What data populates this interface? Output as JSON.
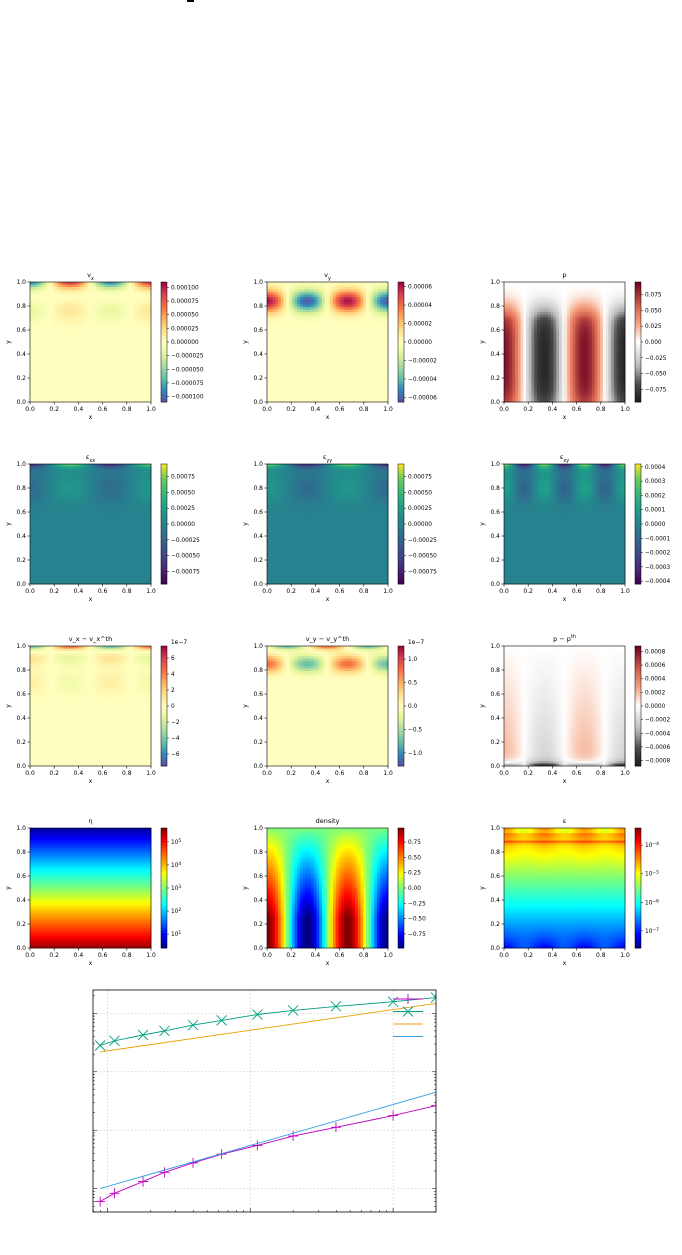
{
  "chart_data": [
    {
      "type": "heatmap",
      "title": "v_x",
      "field": "vx",
      "cmap": "spectral",
      "xlabel": "x",
      "ylabel": "y",
      "xlim": [
        0,
        1
      ],
      "ylim": [
        0,
        1
      ],
      "xticks": [
        "0.0",
        "0.2",
        "0.4",
        "0.6",
        "0.8",
        "1.0"
      ],
      "yticks": [
        "0.0",
        "0.2",
        "0.4",
        "0.6",
        "0.8",
        "1.0"
      ],
      "colorbar_ticks": [
        "0.000100",
        "0.000075",
        "0.000050",
        "0.000025",
        "0.000000",
        "−0.000025",
        "−0.000050",
        "−0.000075",
        "−0.000100"
      ],
      "colorbar_range": [
        -0.00011,
        0.00011
      ],
      "colorbar_offset": ""
    },
    {
      "type": "heatmap",
      "title": "v_y",
      "field": "vy",
      "cmap": "spectral",
      "xlabel": "x",
      "ylabel": "y",
      "xlim": [
        0,
        1
      ],
      "ylim": [
        0,
        1
      ],
      "xticks": [
        "0.0",
        "0.2",
        "0.4",
        "0.6",
        "0.8",
        "1.0"
      ],
      "yticks": [
        "0.0",
        "0.2",
        "0.4",
        "0.6",
        "0.8",
        "1.0"
      ],
      "colorbar_ticks": [
        "0.00006",
        "0.00004",
        "0.00002",
        "0.00000",
        "−0.00002",
        "−0.00004",
        "−0.00006"
      ],
      "colorbar_range": [
        -6.5e-05,
        6.5e-05
      ],
      "colorbar_offset": ""
    },
    {
      "type": "heatmap",
      "title": "p",
      "field": "p",
      "cmap": "rdgy",
      "xlabel": "x",
      "ylabel": "y",
      "xlim": [
        0,
        1
      ],
      "ylim": [
        0,
        1
      ],
      "xticks": [
        "0.0",
        "0.2",
        "0.4",
        "0.6",
        "0.8",
        "1.0"
      ],
      "yticks": [
        "0.0",
        "0.2",
        "0.4",
        "0.6",
        "0.8",
        "1.0"
      ],
      "colorbar_ticks": [
        "0.075",
        "0.050",
        "0.025",
        "0.000",
        "−0.025",
        "−0.050",
        "−0.075"
      ],
      "colorbar_range": [
        -0.095,
        0.095
      ],
      "colorbar_offset": ""
    },
    {
      "type": "heatmap",
      "title": "ε_xx",
      "field": "exx",
      "cmap": "viridis",
      "xlabel": "x",
      "ylabel": "y",
      "xlim": [
        0,
        1
      ],
      "ylim": [
        0,
        1
      ],
      "xticks": [
        "0.0",
        "0.2",
        "0.4",
        "0.6",
        "0.8",
        "1.0"
      ],
      "yticks": [
        "0.0",
        "0.2",
        "0.4",
        "0.6",
        "0.8",
        "1.0"
      ],
      "colorbar_ticks": [
        "0.00075",
        "0.00050",
        "0.00025",
        "0.00000",
        "−0.00025",
        "−0.00050",
        "−0.00075"
      ],
      "colorbar_range": [
        -0.00095,
        0.00095
      ],
      "colorbar_offset": ""
    },
    {
      "type": "heatmap",
      "title": "ε_yy",
      "field": "eyy",
      "cmap": "viridis",
      "xlabel": "x",
      "ylabel": "y",
      "xlim": [
        0,
        1
      ],
      "ylim": [
        0,
        1
      ],
      "xticks": [
        "0.0",
        "0.2",
        "0.4",
        "0.6",
        "0.8",
        "1.0"
      ],
      "yticks": [
        "0.0",
        "0.2",
        "0.4",
        "0.6",
        "0.8",
        "1.0"
      ],
      "colorbar_ticks": [
        "0.00075",
        "0.00050",
        "0.00025",
        "0.00000",
        "−0.00025",
        "−0.00050",
        "−0.00075"
      ],
      "colorbar_range": [
        -0.00095,
        0.00095
      ],
      "colorbar_offset": ""
    },
    {
      "type": "heatmap",
      "title": "ε_xy",
      "field": "exy",
      "cmap": "viridis",
      "xlabel": "x",
      "ylabel": "y",
      "xlim": [
        0,
        1
      ],
      "ylim": [
        0,
        1
      ],
      "xticks": [
        "0.0",
        "0.2",
        "0.4",
        "0.6",
        "0.8",
        "1.0"
      ],
      "yticks": [
        "0.0",
        "0.2",
        "0.4",
        "0.6",
        "0.8",
        "1.0"
      ],
      "colorbar_ticks": [
        "0.0004",
        "0.0003",
        "0.0002",
        "0.0001",
        "0.0000",
        "−0.0001",
        "−0.0002",
        "−0.0003",
        "−0.0004"
      ],
      "colorbar_range": [
        -0.00042,
        0.00042
      ],
      "colorbar_offset": ""
    },
    {
      "type": "heatmap",
      "title": "v_x − v_x^th",
      "field": "dvx",
      "cmap": "spectral",
      "xlabel": "x",
      "ylabel": "y",
      "xlim": [
        0,
        1
      ],
      "ylim": [
        0,
        1
      ],
      "xticks": [
        "0.0",
        "0.2",
        "0.4",
        "0.6",
        "0.8",
        "1.0"
      ],
      "yticks": [
        "0.0",
        "0.2",
        "0.4",
        "0.6",
        "0.8",
        "1.0"
      ],
      "colorbar_ticks": [
        "6",
        "4",
        "2",
        "0",
        "−2",
        "−4",
        "−6"
      ],
      "colorbar_range": [
        -7.5,
        7.5
      ],
      "colorbar_offset": "1e−7"
    },
    {
      "type": "heatmap",
      "title": "v_y − v_y^th",
      "field": "dvy",
      "cmap": "spectral",
      "xlabel": "x",
      "ylabel": "y",
      "xlim": [
        0,
        1
      ],
      "ylim": [
        0,
        1
      ],
      "xticks": [
        "0.0",
        "0.2",
        "0.4",
        "0.6",
        "0.8",
        "1.0"
      ],
      "yticks": [
        "0.0",
        "0.2",
        "0.4",
        "0.6",
        "0.8",
        "1.0"
      ],
      "colorbar_ticks": [
        "1.0",
        "0.5",
        "0.0",
        "−0.5",
        "−1.0"
      ],
      "colorbar_range": [
        -1.28,
        1.28
      ],
      "colorbar_offset": "1e−7"
    },
    {
      "type": "heatmap",
      "title": "p − p^th",
      "field": "dp",
      "cmap": "rdgy",
      "xlabel": "x",
      "ylabel": "y",
      "xlim": [
        0,
        1
      ],
      "ylim": [
        0,
        1
      ],
      "xticks": [
        "0.0",
        "0.2",
        "0.4",
        "0.6",
        "0.8",
        "1.0"
      ],
      "yticks": [
        "0.0",
        "0.2",
        "0.4",
        "0.6",
        "0.8",
        "1.0"
      ],
      "colorbar_ticks": [
        "0.0008",
        "0.0006",
        "0.0004",
        "0.0002",
        "0.0000",
        "−0.0002",
        "−0.0004",
        "−0.0006",
        "−0.0008"
      ],
      "colorbar_range": [
        -0.00088,
        0.00088
      ],
      "colorbar_offset": ""
    },
    {
      "type": "heatmap",
      "title": "η",
      "field": "eta",
      "cmap": "jet",
      "log": true,
      "xlabel": "x",
      "ylabel": "y",
      "xlim": [
        0,
        1
      ],
      "ylim": [
        0,
        1
      ],
      "xticks": [
        "0.0",
        "0.2",
        "0.4",
        "0.6",
        "0.8",
        "1.0"
      ],
      "yticks": [
        "0.0",
        "0.2",
        "0.4",
        "0.6",
        "0.8",
        "1.0"
      ],
      "colorbar_ticks": [
        "10^5",
        "10^4",
        "10^3",
        "10^2",
        "10^1"
      ],
      "colorbar_range": [
        0.4,
        5.6
      ],
      "colorbar_offset": ""
    },
    {
      "type": "heatmap",
      "title": "density",
      "field": "rho",
      "cmap": "jet",
      "xlabel": "x",
      "ylabel": "y",
      "xlim": [
        0,
        1
      ],
      "ylim": [
        0,
        1
      ],
      "xticks": [
        "0.0",
        "0.2",
        "0.4",
        "0.6",
        "0.8",
        "1.0"
      ],
      "yticks": [
        "0.0",
        "0.2",
        "0.4",
        "0.6",
        "0.8",
        "1.0"
      ],
      "colorbar_ticks": [
        "0.75",
        "0.50",
        "0.25",
        "0.00",
        "−0.25",
        "−0.50",
        "−0.75"
      ],
      "colorbar_range": [
        -0.98,
        0.98
      ],
      "colorbar_offset": ""
    },
    {
      "type": "heatmap",
      "title": "ε",
      "field": "eps",
      "cmap": "jet",
      "log": true,
      "xlabel": "x",
      "ylabel": "y",
      "xlim": [
        0,
        1
      ],
      "ylim": [
        0,
        1
      ],
      "xticks": [
        "0.0",
        "0.2",
        "0.4",
        "0.6",
        "0.8",
        "1.0"
      ],
      "yticks": [
        "0.0",
        "0.2",
        "0.4",
        "0.6",
        "0.8",
        "1.0"
      ],
      "colorbar_ticks": [
        "10^−4",
        "10^−5",
        "10^−6",
        "10^−7"
      ],
      "colorbar_range": [
        -7.6,
        -3.4
      ],
      "colorbar_offset": ""
    },
    {
      "type": "line",
      "log_x": true,
      "log_y": true,
      "title": "",
      "xlabel": "",
      "ylabel": "",
      "grid": true,
      "legend": "top-right",
      "xlim": [
        0.9,
        3.3
      ],
      "ylim": [
        -4.4,
        -0.6
      ],
      "series": [
        {
          "marker": "+",
          "color": "#c000c0",
          "x": [
            0.95,
            1.05,
            1.25,
            1.4,
            1.6,
            1.8,
            2.05,
            2.3,
            2.6,
            3.0,
            3.3
          ],
          "y": [
            -4.22,
            -4.08,
            -3.88,
            -3.72,
            -3.56,
            -3.41,
            -3.26,
            -3.1,
            -2.95,
            -2.75,
            -2.58
          ]
        },
        {
          "marker": "x",
          "color": "#00a080",
          "x": [
            0.95,
            1.05,
            1.25,
            1.4,
            1.6,
            1.8,
            2.05,
            2.3,
            2.6,
            3.0,
            3.3
          ],
          "y": [
            -1.55,
            -1.47,
            -1.37,
            -1.3,
            -1.2,
            -1.12,
            -1.02,
            -0.95,
            -0.88,
            -0.8,
            -0.73
          ]
        },
        {
          "marker": "",
          "color": "#e8a000",
          "x": [
            0.95,
            3.3
          ],
          "y": [
            -1.66,
            -0.83
          ]
        },
        {
          "marker": "",
          "color": "#30a0e0",
          "x": [
            0.95,
            3.3
          ],
          "y": [
            -4.0,
            -2.35
          ]
        }
      ]
    }
  ]
}
